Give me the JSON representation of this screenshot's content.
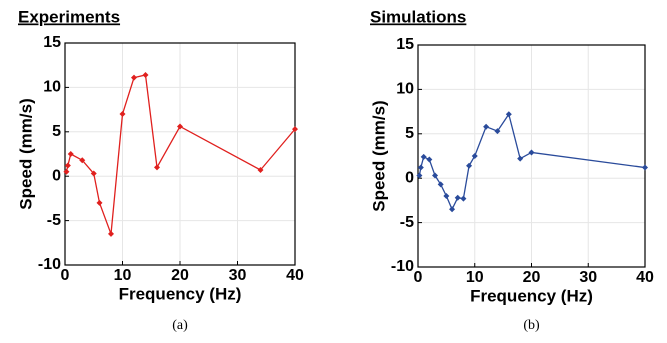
{
  "chart_data": [
    {
      "type": "line",
      "title": "Experiments",
      "x_label": "Frequency (Hz)",
      "y_label": "Speed (mm/s)",
      "caption": "(a)",
      "x": [
        0.25,
        0.5,
        1,
        3,
        5,
        6,
        8,
        10,
        12,
        14,
        16,
        20,
        34,
        40
      ],
      "series": [
        {
          "color": "#e0201e",
          "values": [
            0.5,
            1.2,
            2.5,
            1.8,
            0.3,
            -3,
            -6.5,
            7,
            11.1,
            11.4,
            1,
            5.6,
            0.7,
            5.3
          ]
        }
      ],
      "xlim": [
        0,
        40
      ],
      "xticks": [
        0,
        10,
        20,
        30,
        40
      ],
      "ylim": [
        -10,
        15
      ],
      "yticks": [
        -10,
        -5,
        0,
        5,
        10,
        15
      ],
      "grid": true
    },
    {
      "type": "line",
      "title": "Simulations",
      "x_label": "Frequency (Hz)",
      "y_label": "Speed (mm/s)",
      "caption": "(b)",
      "x": [
        0.25,
        0.5,
        1,
        2,
        3,
        4,
        5,
        6,
        7,
        8,
        9,
        10,
        12,
        14,
        16,
        18,
        20,
        40
      ],
      "series": [
        {
          "color": "#2a4b9b",
          "values": [
            0.3,
            1.2,
            2.4,
            2.1,
            0.3,
            -0.7,
            -2,
            -3.5,
            -2.2,
            -2.3,
            1.4,
            2.5,
            5.8,
            5.3,
            7.2,
            2.2,
            2.9,
            1.2
          ]
        }
      ],
      "xlim": [
        0,
        40
      ],
      "xticks": [
        0,
        10,
        20,
        30,
        40
      ],
      "ylim": [
        -10,
        15
      ],
      "yticks": [
        -10,
        -5,
        0,
        5,
        10,
        15
      ],
      "grid": true
    }
  ]
}
